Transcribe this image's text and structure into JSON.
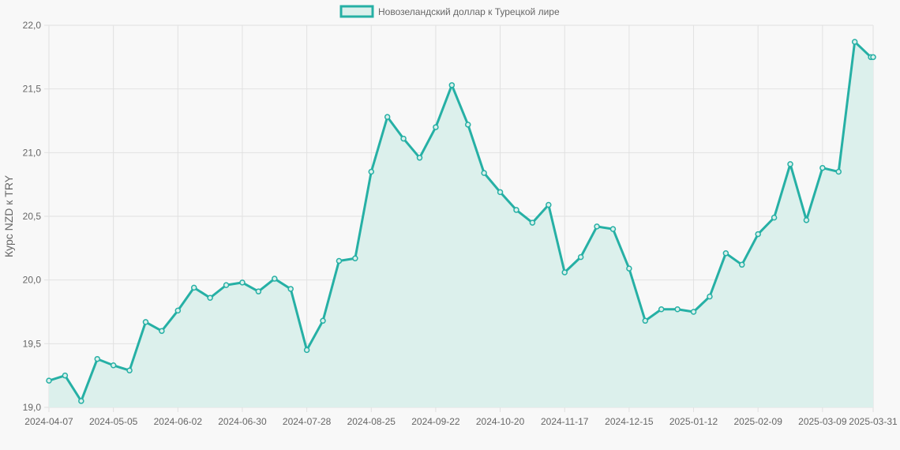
{
  "colors": {
    "line": "#26b0a5",
    "fill": "#dcf0ec",
    "grid": "#e1e1e1",
    "text": "#666666",
    "background": "#f8f8f8"
  },
  "chart_data": {
    "type": "line",
    "title": "",
    "xlabel": "",
    "ylabel": "Курс NZD к TRY",
    "ylim": [
      19.0,
      22.0
    ],
    "grid": true,
    "legend_position": "top",
    "y_ticks": [
      "19,0",
      "19,5",
      "20,0",
      "20,5",
      "21,0",
      "21,5",
      "22,0"
    ],
    "x_ticks": [
      "2024-04-07",
      "2024-05-05",
      "2024-06-02",
      "2024-06-30",
      "2024-07-28",
      "2024-08-25",
      "2024-09-22",
      "2024-10-20",
      "2024-11-17",
      "2024-12-15",
      "2025-01-12",
      "2025-02-09",
      "2025-03-09",
      "2025-03-31"
    ],
    "series": [
      {
        "name": "Новозеландский доллар к Турецкой лире",
        "x": [
          "2024-04-07",
          "2024-04-14",
          "2024-04-21",
          "2024-04-28",
          "2024-05-05",
          "2024-05-12",
          "2024-05-19",
          "2024-05-26",
          "2024-06-02",
          "2024-06-09",
          "2024-06-16",
          "2024-06-23",
          "2024-06-30",
          "2024-07-07",
          "2024-07-14",
          "2024-07-21",
          "2024-07-28",
          "2024-08-04",
          "2024-08-11",
          "2024-08-18",
          "2024-08-25",
          "2024-09-01",
          "2024-09-08",
          "2024-09-15",
          "2024-09-22",
          "2024-09-29",
          "2024-10-06",
          "2024-10-13",
          "2024-10-20",
          "2024-10-27",
          "2024-11-03",
          "2024-11-10",
          "2024-11-17",
          "2024-11-24",
          "2024-12-01",
          "2024-12-08",
          "2024-12-15",
          "2024-12-22",
          "2024-12-29",
          "2025-01-05",
          "2025-01-12",
          "2025-01-19",
          "2025-01-26",
          "2025-02-02",
          "2025-02-09",
          "2025-02-16",
          "2025-02-23",
          "2025-03-02",
          "2025-03-09",
          "2025-03-16",
          "2025-03-23",
          "2025-03-30",
          "2025-03-31"
        ],
        "values": [
          19.21,
          19.25,
          19.05,
          19.38,
          19.33,
          19.29,
          19.67,
          19.6,
          19.76,
          19.94,
          19.86,
          19.96,
          19.98,
          19.91,
          20.01,
          19.93,
          19.45,
          19.68,
          20.15,
          20.17,
          20.85,
          21.28,
          21.11,
          20.96,
          21.2,
          21.53,
          21.22,
          20.84,
          20.69,
          20.55,
          20.45,
          20.59,
          20.06,
          20.18,
          20.42,
          20.4,
          20.09,
          19.68,
          19.77,
          19.77,
          19.75,
          19.87,
          20.21,
          20.12,
          20.36,
          20.49,
          20.91,
          20.47,
          20.88,
          20.85,
          21.87,
          21.75,
          21.75
        ]
      }
    ]
  }
}
